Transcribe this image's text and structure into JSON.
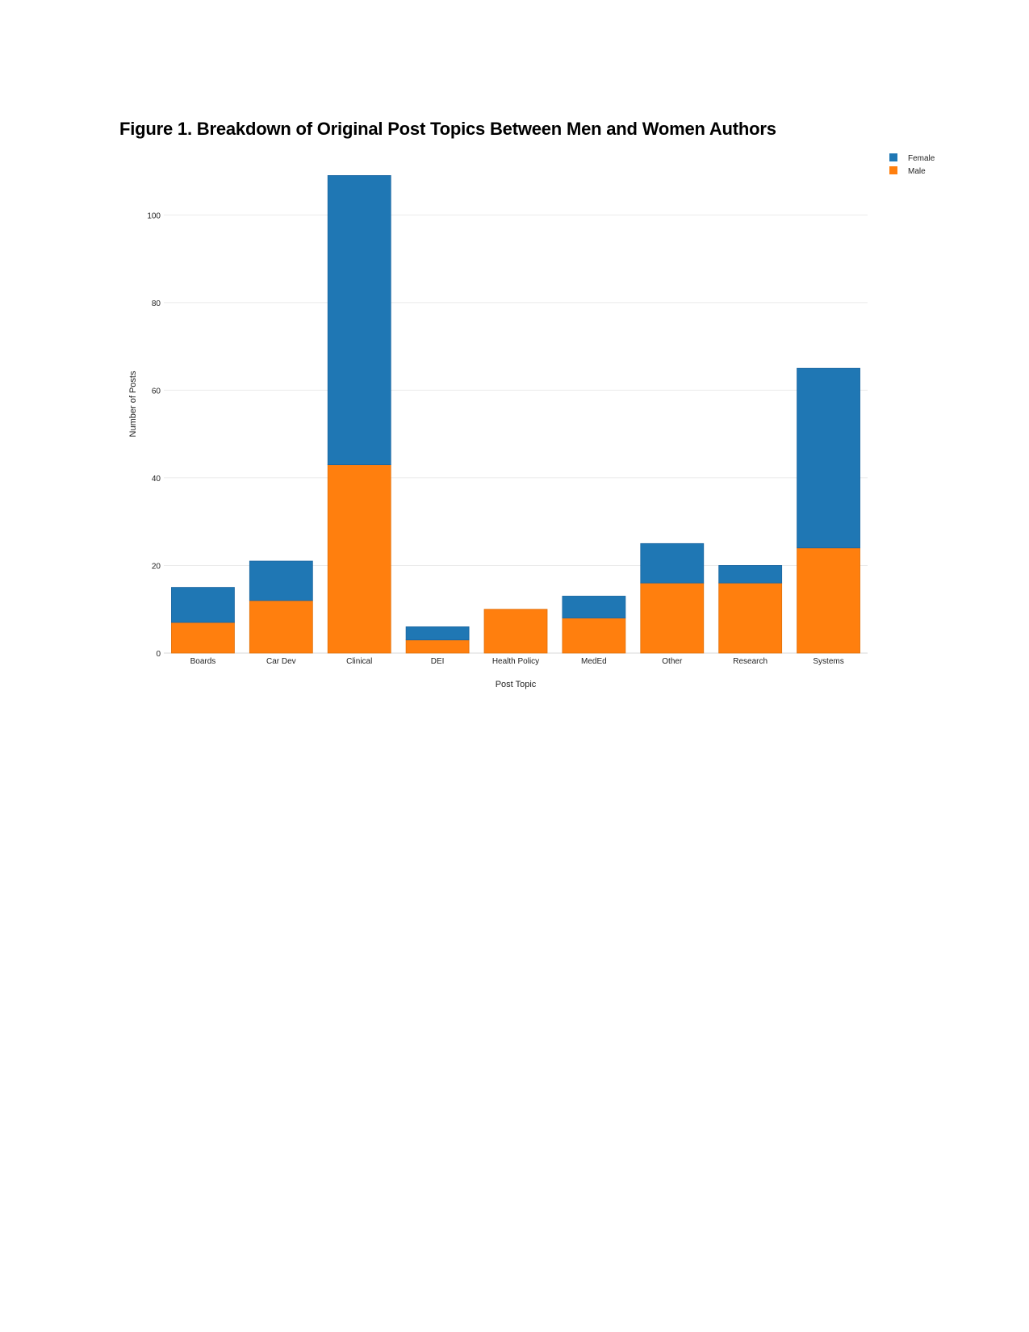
{
  "figure": {
    "title": "Figure 1. Breakdown of Original Post Topics Between Men and Women Authors"
  },
  "chart_data": {
    "type": "bar",
    "stacked": true,
    "categories": [
      "Boards",
      "Car Dev",
      "Clinical",
      "DEI",
      "Health Policy",
      "MedEd",
      "Other",
      "Research",
      "Systems"
    ],
    "series": [
      {
        "name": "Male",
        "color": "#ff7f0e",
        "values": [
          7,
          12,
          43,
          3,
          10,
          8,
          16,
          16,
          24
        ]
      },
      {
        "name": "Female",
        "color": "#1f77b4",
        "values": [
          8,
          9,
          66,
          3,
          0,
          5,
          9,
          4,
          41
        ]
      }
    ],
    "legend_order": [
      "Female",
      "Male"
    ],
    "xlabel": "Post Topic",
    "ylabel": "Number of Posts",
    "ylim": [
      0,
      110
    ],
    "yticks": [
      0,
      20,
      40,
      60,
      80,
      100
    ],
    "grid": true,
    "legend_position": "top-right"
  }
}
